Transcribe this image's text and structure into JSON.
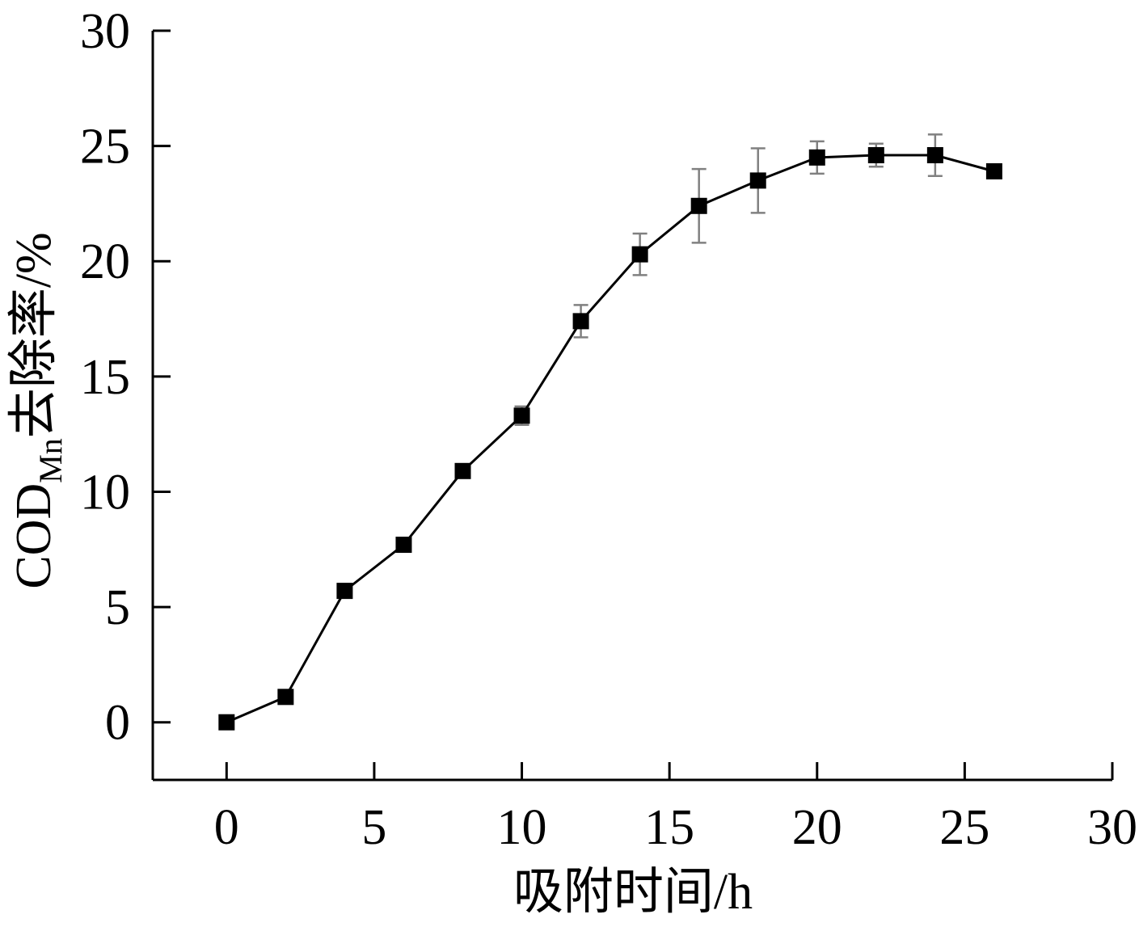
{
  "chart_data": {
    "type": "line",
    "title": "",
    "xlabel": "吸附时间/h",
    "ylabel_parts": {
      "main": "COD",
      "subscript": "Mn",
      "suffix": "去除率/%"
    },
    "xlim": [
      -2.5,
      30
    ],
    "ylim": [
      -2.5,
      30
    ],
    "xticks": [
      0,
      5,
      10,
      15,
      20,
      25,
      30
    ],
    "yticks": [
      0,
      5,
      10,
      15,
      20,
      25,
      30
    ],
    "grid": false,
    "legend": "none",
    "marker": "square",
    "colors": {
      "line": "#000000",
      "marker": "#000000",
      "error_bar": "#808080",
      "axis": "#000000"
    },
    "series": [
      {
        "x": [
          0,
          2,
          4,
          6,
          8,
          10,
          12,
          14,
          16,
          18,
          20,
          22,
          24,
          26
        ],
        "y": [
          0,
          1.1,
          5.7,
          7.7,
          10.9,
          13.3,
          17.4,
          20.3,
          22.4,
          23.5,
          24.5,
          24.6,
          24.6,
          23.9
        ],
        "error": [
          0,
          0,
          0,
          0,
          0,
          0.4,
          0.7,
          0.9,
          1.6,
          1.4,
          0.7,
          0.5,
          0.9,
          0
        ]
      }
    ]
  }
}
